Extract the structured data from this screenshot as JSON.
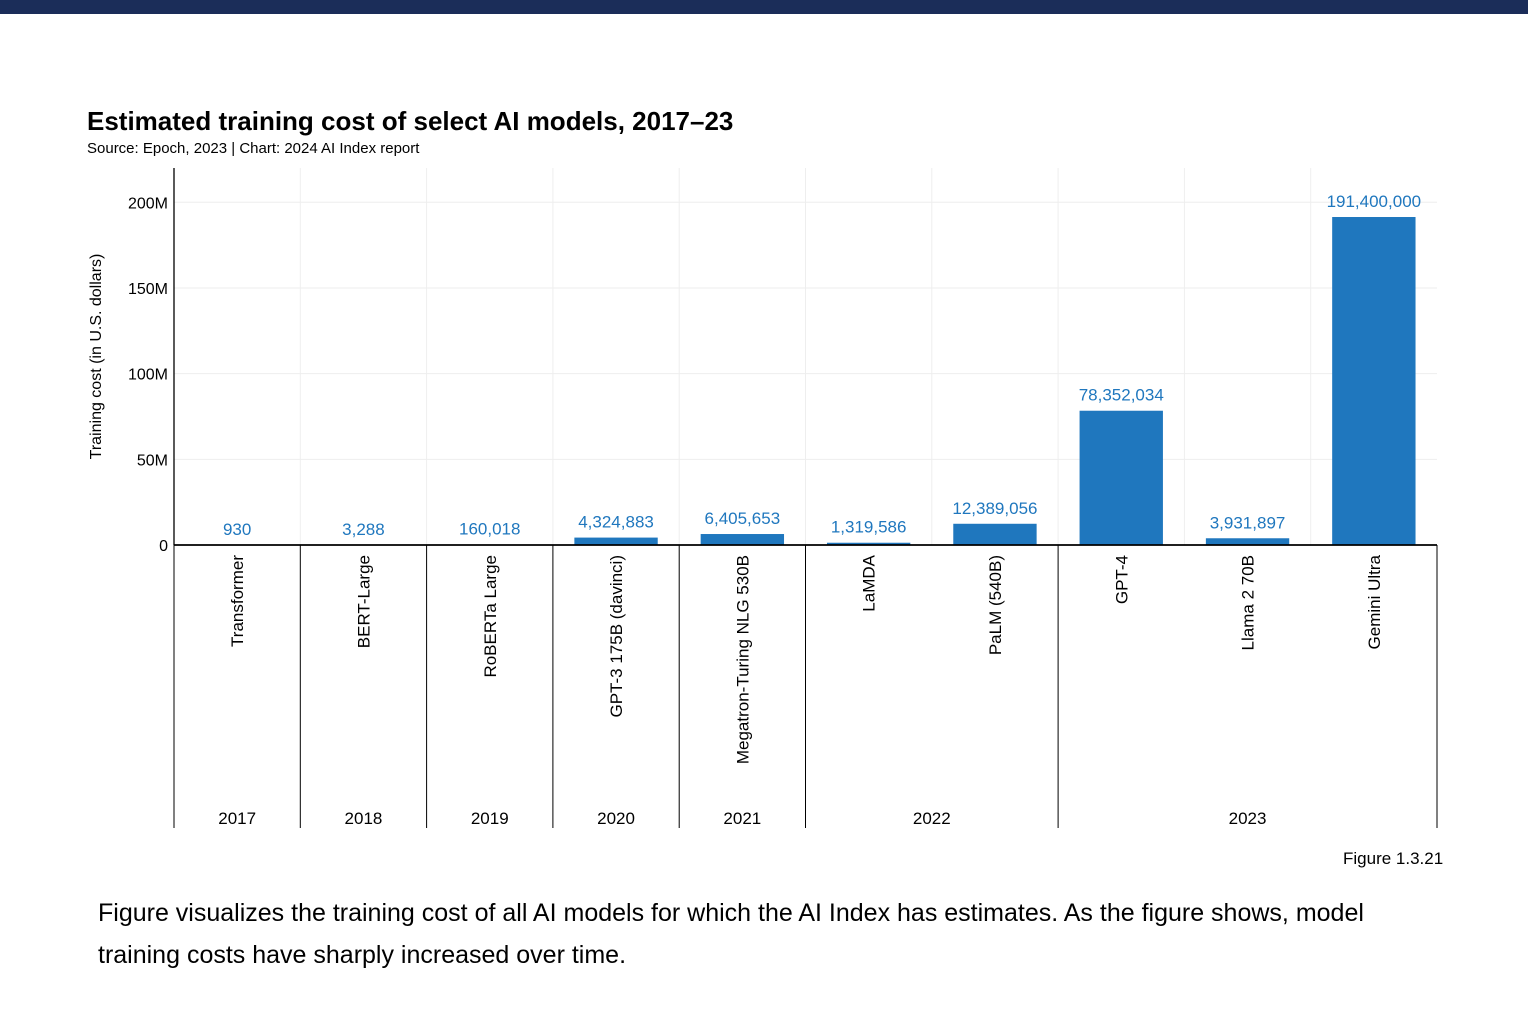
{
  "header": {
    "title": "Estimated training cost of select AI models, 2017–23",
    "subtitle": "Source: Epoch, 2023 | Chart: 2024 AI Index report"
  },
  "colors": {
    "bar": "#1f77be",
    "label": "#1f77be",
    "topbar": "#1b2d59"
  },
  "chart_data": {
    "type": "bar",
    "title": "Estimated training cost of select AI models, 2017–23",
    "ylabel": "Training cost (in U.S. dollars)",
    "ylim": [
      0,
      220000000
    ],
    "yticks": [
      {
        "value": 0,
        "label": "0"
      },
      {
        "value": 50000000,
        "label": "50M"
      },
      {
        "value": 100000000,
        "label": "100M"
      },
      {
        "value": 150000000,
        "label": "150M"
      },
      {
        "value": 200000000,
        "label": "200M"
      }
    ],
    "grid": true,
    "categories": [
      "Transformer",
      "BERT-Large",
      "RoBERTa Large",
      "GPT-3 175B (davinci)",
      "Megatron-Turing NLG 530B",
      "LaMDA",
      "PaLM (540B)",
      "GPT-4",
      "Llama 2 70B",
      "Gemini Ultra"
    ],
    "values": [
      930,
      3288,
      160018,
      4324883,
      6405653,
      1319586,
      12389056,
      78352034,
      3931897,
      191400000
    ],
    "value_labels": [
      "930",
      "3,288",
      "160,018",
      "4,324,883",
      "6,405,653",
      "1,319,586",
      "12,389,056",
      "78,352,034",
      "3,931,897",
      "191,400,000"
    ],
    "groups": [
      {
        "label": "2017",
        "count": 1
      },
      {
        "label": "2018",
        "count": 1
      },
      {
        "label": "2019",
        "count": 1
      },
      {
        "label": "2020",
        "count": 1
      },
      {
        "label": "2021",
        "count": 1
      },
      {
        "label": "2022",
        "count": 2
      },
      {
        "label": "2023",
        "count": 3
      }
    ]
  },
  "footer": {
    "figure_number": "Figure 1.3.21",
    "caption": "Figure visualizes the training cost of all AI models for which the AI Index has estimates. As the figure shows, model training costs have sharply increased over time."
  }
}
